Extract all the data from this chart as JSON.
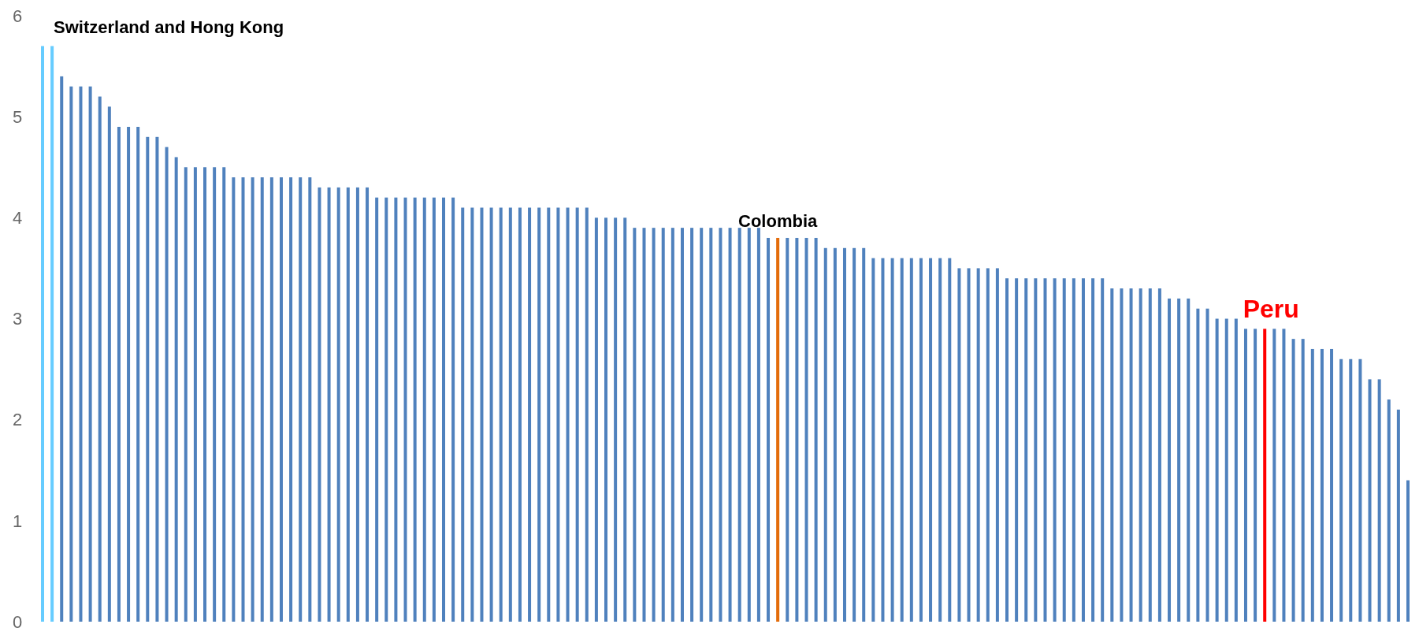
{
  "chart_data": {
    "type": "bar",
    "categories": [
      null,
      null,
      null,
      null,
      null,
      null,
      null,
      null,
      null,
      null,
      null,
      null,
      null,
      null,
      null,
      null,
      null,
      null,
      null,
      null,
      null,
      null,
      null,
      null,
      null,
      null,
      null,
      null,
      null,
      null,
      null,
      null,
      null,
      null,
      null,
      null,
      null,
      null,
      null,
      null,
      null,
      null,
      null,
      null,
      null,
      null,
      null,
      null,
      null,
      null,
      null,
      null,
      null,
      null,
      null,
      null,
      null,
      null,
      null,
      null,
      null,
      null,
      null,
      null,
      null,
      null,
      null,
      null,
      null,
      null,
      null,
      null,
      null,
      null,
      null,
      null,
      null,
      null,
      null,
      null,
      null,
      null,
      null,
      null,
      null,
      null,
      null,
      null,
      null,
      null,
      null,
      null,
      null,
      null,
      null,
      null,
      null,
      null,
      null,
      null,
      null,
      null,
      null,
      null,
      null,
      null,
      null,
      null,
      null,
      null,
      null,
      null,
      null,
      null,
      null,
      null,
      null,
      null,
      null,
      null,
      null,
      null,
      null,
      null,
      null,
      null,
      null,
      null,
      null,
      null,
      null,
      null,
      null,
      null,
      null,
      null,
      null,
      null,
      null,
      null,
      null,
      null,
      null,
      null
    ],
    "values": [
      5.7,
      5.7,
      5.4,
      5.3,
      5.3,
      5.3,
      5.2,
      5.1,
      4.9,
      4.9,
      4.9,
      4.8,
      4.8,
      4.7,
      4.6,
      4.5,
      4.5,
      4.5,
      4.5,
      4.5,
      4.4,
      4.4,
      4.4,
      4.4,
      4.4,
      4.4,
      4.4,
      4.4,
      4.4,
      4.3,
      4.3,
      4.3,
      4.3,
      4.3,
      4.3,
      4.2,
      4.2,
      4.2,
      4.2,
      4.2,
      4.2,
      4.2,
      4.2,
      4.2,
      4.1,
      4.1,
      4.1,
      4.1,
      4.1,
      4.1,
      4.1,
      4.1,
      4.1,
      4.1,
      4.1,
      4.1,
      4.1,
      4.1,
      4.0,
      4.0,
      4.0,
      4.0,
      3.9,
      3.9,
      3.9,
      3.9,
      3.9,
      3.9,
      3.9,
      3.9,
      3.9,
      3.9,
      3.9,
      3.9,
      3.9,
      3.9,
      3.8,
      3.8,
      3.8,
      3.8,
      3.8,
      3.8,
      3.7,
      3.7,
      3.7,
      3.7,
      3.7,
      3.6,
      3.6,
      3.6,
      3.6,
      3.6,
      3.6,
      3.6,
      3.6,
      3.6,
      3.5,
      3.5,
      3.5,
      3.5,
      3.5,
      3.4,
      3.4,
      3.4,
      3.4,
      3.4,
      3.4,
      3.4,
      3.4,
      3.4,
      3.4,
      3.4,
      3.3,
      3.3,
      3.3,
      3.3,
      3.3,
      3.3,
      3.2,
      3.2,
      3.2,
      3.1,
      3.1,
      3.0,
      3.0,
      3.0,
      2.9,
      2.9,
      2.9,
      2.9,
      2.9,
      2.8,
      2.8,
      2.7,
      2.7,
      2.7,
      2.6,
      2.6,
      2.6,
      2.4,
      2.4,
      2.2,
      2.1,
      1.4
    ],
    "colors": [
      "#66ccff",
      "#66ccff",
      "#4f81bd",
      "#4f81bd",
      "#4f81bd",
      "#4f81bd",
      "#4f81bd",
      "#4f81bd",
      "#4f81bd",
      "#4f81bd",
      "#4f81bd",
      "#4f81bd",
      "#4f81bd",
      "#4f81bd",
      "#4f81bd",
      "#4f81bd",
      "#4f81bd",
      "#4f81bd",
      "#4f81bd",
      "#4f81bd",
      "#4f81bd",
      "#4f81bd",
      "#4f81bd",
      "#4f81bd",
      "#4f81bd",
      "#4f81bd",
      "#4f81bd",
      "#4f81bd",
      "#4f81bd",
      "#4f81bd",
      "#4f81bd",
      "#4f81bd",
      "#4f81bd",
      "#4f81bd",
      "#4f81bd",
      "#4f81bd",
      "#4f81bd",
      "#4f81bd",
      "#4f81bd",
      "#4f81bd",
      "#4f81bd",
      "#4f81bd",
      "#4f81bd",
      "#4f81bd",
      "#4f81bd",
      "#4f81bd",
      "#4f81bd",
      "#4f81bd",
      "#4f81bd",
      "#4f81bd",
      "#4f81bd",
      "#4f81bd",
      "#4f81bd",
      "#4f81bd",
      "#4f81bd",
      "#4f81bd",
      "#4f81bd",
      "#4f81bd",
      "#4f81bd",
      "#4f81bd",
      "#4f81bd",
      "#4f81bd",
      "#4f81bd",
      "#4f81bd",
      "#4f81bd",
      "#4f81bd",
      "#4f81bd",
      "#4f81bd",
      "#4f81bd",
      "#4f81bd",
      "#4f81bd",
      "#4f81bd",
      "#4f81bd",
      "#4f81bd",
      "#4f81bd",
      "#4f81bd",
      "#4f81bd",
      "#e36c0a",
      "#4f81bd",
      "#4f81bd",
      "#4f81bd",
      "#4f81bd",
      "#4f81bd",
      "#4f81bd",
      "#4f81bd",
      "#4f81bd",
      "#4f81bd",
      "#4f81bd",
      "#4f81bd",
      "#4f81bd",
      "#4f81bd",
      "#4f81bd",
      "#4f81bd",
      "#4f81bd",
      "#4f81bd",
      "#4f81bd",
      "#4f81bd",
      "#4f81bd",
      "#4f81bd",
      "#4f81bd",
      "#4f81bd",
      "#4f81bd",
      "#4f81bd",
      "#4f81bd",
      "#4f81bd",
      "#4f81bd",
      "#4f81bd",
      "#4f81bd",
      "#4f81bd",
      "#4f81bd",
      "#4f81bd",
      "#4f81bd",
      "#4f81bd",
      "#4f81bd",
      "#4f81bd",
      "#4f81bd",
      "#4f81bd",
      "#4f81bd",
      "#4f81bd",
      "#4f81bd",
      "#4f81bd",
      "#4f81bd",
      "#4f81bd",
      "#4f81bd",
      "#4f81bd",
      "#4f81bd",
      "#4f81bd",
      "#4f81bd",
      "#ff0000",
      "#4f81bd",
      "#4f81bd",
      "#4f81bd",
      "#4f81bd",
      "#4f81bd",
      "#4f81bd",
      "#4f81bd",
      "#4f81bd",
      "#4f81bd",
      "#4f81bd",
      "#4f81bd",
      "#4f81bd",
      "#4f81bd",
      "#4f81bd",
      "#4f81bd"
    ],
    "annotations": [
      "Switzerland and Hong Kong",
      {
        "text": "Colombia",
        "y": 3.8
      },
      {
        "text": "Peru",
        "y": 2.9
      }
    ],
    "ylim": [
      0,
      6
    ],
    "yticks": [
      0,
      1,
      2,
      3,
      4,
      5,
      6
    ],
    "grid": false
  }
}
